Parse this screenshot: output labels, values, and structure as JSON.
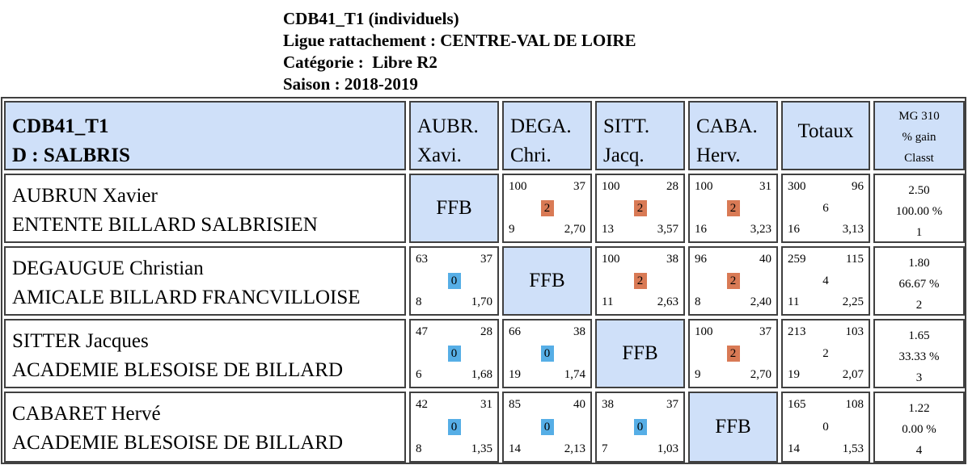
{
  "header": {
    "line1": "CDB41_T1 (individuels)",
    "line2": "Ligue rattachement : CENTRE-VAL DE LOIRE",
    "line3": "Catégorie :  Libre R2",
    "line4": "Saison : 2018-2019"
  },
  "table": {
    "title_line1": "CDB41_T1",
    "title_line2": "D : SALBRIS",
    "columns": [
      {
        "line1": "AUBR.",
        "line2": "Xavi."
      },
      {
        "line1": "DEGA.",
        "line2": "Chri."
      },
      {
        "line1": "SITT.",
        "line2": "Jacq."
      },
      {
        "line1": "CABA.",
        "line2": "Herv."
      }
    ],
    "totals_label": "Totaux",
    "mg_header": {
      "line1": "MG 310",
      "line2": "% gain",
      "line3": "Classt"
    },
    "ffb_label": "FFB",
    "point_colors": {
      "win": "#d97a55",
      "loss": "#56aee6"
    },
    "rows": [
      {
        "name": "AUBRUN Xavier",
        "club": "ENTENTE BILLARD SALBRISIEN",
        "cells": [
          null,
          {
            "pts": "100",
            "opp": "37",
            "score": "2",
            "inn": "9",
            "avg": "2,70",
            "result": "win"
          },
          {
            "pts": "100",
            "opp": "28",
            "score": "2",
            "inn": "13",
            "avg": "3,57",
            "result": "win"
          },
          {
            "pts": "100",
            "opp": "31",
            "score": "2",
            "inn": "16",
            "avg": "3,23",
            "result": "win"
          }
        ],
        "total": {
          "pts": "300",
          "opp": "96",
          "score": "6",
          "inn": "16",
          "avg": "3,13"
        },
        "mg": {
          "avg": "2.50",
          "pct": "100.00 %",
          "rank": "1"
        }
      },
      {
        "name": "DEGAUGUE Christian",
        "club": "AMICALE BILLARD FRANCVILLOISE",
        "cells": [
          {
            "pts": "63",
            "opp": "37",
            "score": "0",
            "inn": "8",
            "avg": "1,70",
            "result": "loss"
          },
          null,
          {
            "pts": "100",
            "opp": "38",
            "score": "2",
            "inn": "11",
            "avg": "2,63",
            "result": "win"
          },
          {
            "pts": "96",
            "opp": "40",
            "score": "2",
            "inn": "8",
            "avg": "2,40",
            "result": "win"
          }
        ],
        "total": {
          "pts": "259",
          "opp": "115",
          "score": "4",
          "inn": "11",
          "avg": "2,25"
        },
        "mg": {
          "avg": "1.80",
          "pct": "66.67 %",
          "rank": "2"
        }
      },
      {
        "name": "SITTER Jacques",
        "club": "ACADEMIE BLESOISE DE BILLARD",
        "cells": [
          {
            "pts": "47",
            "opp": "28",
            "score": "0",
            "inn": "6",
            "avg": "1,68",
            "result": "loss"
          },
          {
            "pts": "66",
            "opp": "38",
            "score": "0",
            "inn": "19",
            "avg": "1,74",
            "result": "loss"
          },
          null,
          {
            "pts": "100",
            "opp": "37",
            "score": "2",
            "inn": "9",
            "avg": "2,70",
            "result": "win"
          }
        ],
        "total": {
          "pts": "213",
          "opp": "103",
          "score": "2",
          "inn": "19",
          "avg": "2,07"
        },
        "mg": {
          "avg": "1.65",
          "pct": "33.33 %",
          "rank": "3"
        }
      },
      {
        "name": "CABARET Hervé",
        "club": "ACADEMIE BLESOISE DE BILLARD",
        "cells": [
          {
            "pts": "42",
            "opp": "31",
            "score": "0",
            "inn": "8",
            "avg": "1,35",
            "result": "loss"
          },
          {
            "pts": "85",
            "opp": "40",
            "score": "0",
            "inn": "14",
            "avg": "2,13",
            "result": "loss"
          },
          {
            "pts": "38",
            "opp": "37",
            "score": "0",
            "inn": "7",
            "avg": "1,03",
            "result": "loss"
          },
          null
        ],
        "total": {
          "pts": "165",
          "opp": "108",
          "score": "0",
          "inn": "14",
          "avg": "1,53"
        },
        "mg": {
          "avg": "1.22",
          "pct": "0.00 %",
          "rank": "4"
        }
      }
    ]
  }
}
